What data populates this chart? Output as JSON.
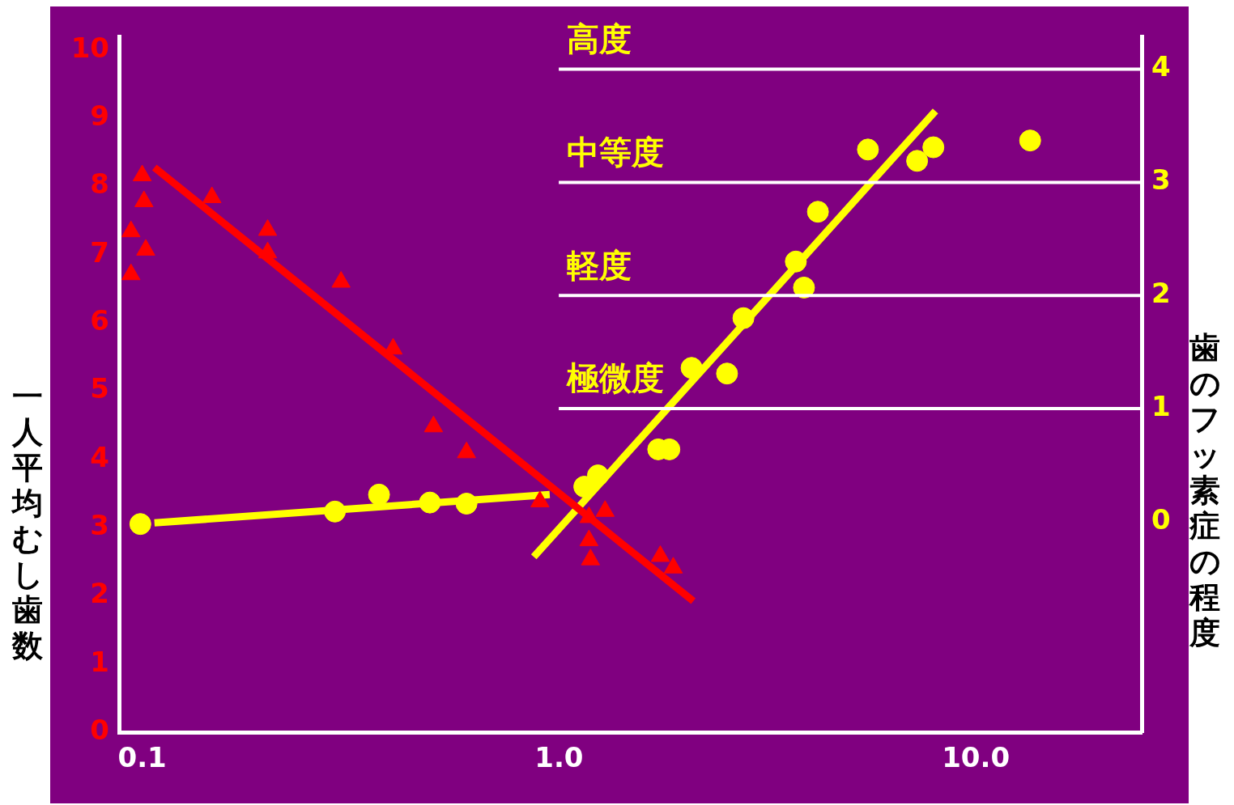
{
  "chart_data": {
    "type": "scatter",
    "ylabel": "一人平均むし歯数",
    "y2label": "歯のフッ素症の程度",
    "log": "x",
    "grid": false,
    "legend": false,
    "xlim": [
      0.088,
      25
    ],
    "xticks": [
      {
        "value": 0.1,
        "label": "0.1"
      },
      {
        "value": 1,
        "label": "1.0"
      },
      {
        "value": 10,
        "label": "10.0"
      }
    ],
    "ylim": [
      0,
      10.2
    ],
    "yticks": [
      0,
      1,
      2,
      3,
      4,
      5,
      6,
      7,
      8,
      9,
      10
    ],
    "y2lim": [
      -1.86,
      4.29
    ],
    "y2ticks": [
      0,
      1,
      2,
      3,
      4
    ],
    "ref_lines": [
      {
        "axis": "y2",
        "value": 4,
        "label": "高度",
        "color": "#ffffff"
      },
      {
        "axis": "y2",
        "value": 3,
        "label": "中等度",
        "color": "#ffffff"
      },
      {
        "axis": "y2",
        "value": 2,
        "label": "軽度",
        "color": "#ffffff"
      },
      {
        "axis": "y2",
        "value": 1,
        "label": "極微度",
        "color": "#ffffff"
      }
    ],
    "series": [
      {
        "type": "scatter",
        "marker": "triangle",
        "color": "#ff0000",
        "x": [
          0.1,
          0.101,
          0.094,
          0.102,
          0.094,
          0.147,
          0.2,
          0.2,
          0.3,
          0.4,
          0.5,
          0.6,
          0.9,
          1.18,
          1.29,
          1.18,
          1.19,
          1.75,
          1.88
        ],
        "values": [
          8.16,
          7.78,
          7.34,
          7.07,
          6.71,
          7.84,
          7.36,
          7.03,
          6.6,
          5.62,
          4.48,
          4.1,
          3.38,
          3.15,
          3.24,
          2.81,
          2.53,
          2.58,
          2.41
        ]
      },
      {
        "type": "line",
        "marker": "none",
        "color": "#ff0000",
        "x": [
          0.107,
          2.1
        ],
        "values": [
          8.28,
          1.92
        ]
      },
      {
        "type": "scatter",
        "marker": "circle",
        "axis": "y2",
        "color": "#ffff00",
        "x": [
          0.099,
          0.29,
          0.37,
          0.49,
          0.6,
          1.15,
          1.24,
          1.73,
          1.84,
          2.08,
          2.53,
          2.77,
          3.7,
          3.87,
          4.18,
          5.51,
          7.23,
          7.91,
          13.5
        ],
        "values": [
          -0.02,
          0.09,
          0.24,
          0.17,
          0.16,
          0.31,
          0.41,
          0.64,
          0.64,
          1.36,
          1.31,
          1.8,
          2.3,
          2.07,
          2.74,
          3.29,
          3.19,
          3.31,
          3.37
        ]
      },
      {
        "type": "line",
        "marker": "none",
        "axis": "y2",
        "color": "#ffff00",
        "x": [
          0.107,
          0.95
        ],
        "values": [
          -0.01,
          0.24
        ]
      },
      {
        "type": "line",
        "marker": "none",
        "axis": "y2",
        "color": "#ffff00",
        "x": [
          0.87,
          8.0
        ],
        "values": [
          -0.31,
          3.63
        ]
      }
    ]
  }
}
